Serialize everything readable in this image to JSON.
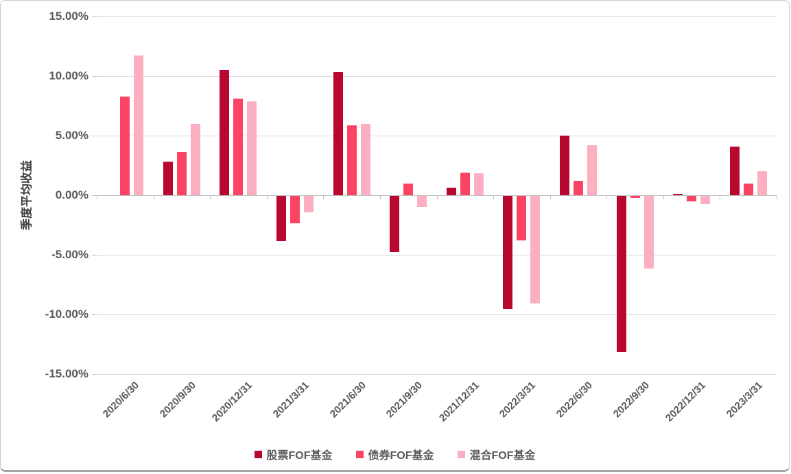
{
  "chart_data": {
    "type": "bar",
    "title": "",
    "xlabel": "",
    "ylabel": "季度平均收益",
    "ylim": [
      -15,
      15
    ],
    "ytick_step": 5,
    "ytick_labels": [
      "15.00%",
      "10.00%",
      "5.00%",
      "0.00%",
      "-5.00%",
      "-10.00%",
      "-15.00%"
    ],
    "grid": true,
    "legend_position": "bottom",
    "categories": [
      "2020/6/30",
      "2020/9/30",
      "2020/12/31",
      "2021/3/31",
      "2021/6/30",
      "2021/9/30",
      "2021/12/31",
      "2022/3/31",
      "2022/6/30",
      "2022/9/30",
      "2022/12/31",
      "2023/3/31"
    ],
    "series": [
      {
        "name": "股票FOF基金",
        "color": "#B8082F",
        "values": [
          0,
          2.8,
          10.5,
          -3.8,
          10.35,
          -4.7,
          0.65,
          -9.5,
          5.0,
          -13.1,
          0.1,
          4.1
        ]
      },
      {
        "name": "债券FOF基金",
        "color": "#FB4364",
        "values": [
          8.3,
          3.6,
          8.1,
          -2.3,
          5.85,
          0.95,
          1.9,
          -3.75,
          1.2,
          -0.15,
          -0.45,
          0.95
        ]
      },
      {
        "name": "混合FOF基金",
        "color": "#FBAFC1",
        "values": [
          11.75,
          6.0,
          7.85,
          -1.4,
          6.0,
          -0.9,
          1.85,
          -9.0,
          4.2,
          -6.1,
          -0.7,
          2.0
        ]
      }
    ]
  }
}
